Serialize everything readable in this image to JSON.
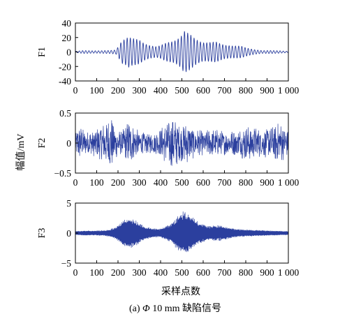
{
  "figure": {
    "caption_prefix": "(a) ",
    "caption_symbol": "Φ",
    "caption_rest": "10 mm 缺陷信号",
    "shared_ylabel": "幅值/mV",
    "shared_xlabel": "采样点数",
    "line_color": "#2b3f9e"
  },
  "chart_data": [
    {
      "type": "line",
      "ylabel": "F1",
      "xlim": [
        0,
        1000
      ],
      "ylim": [
        -40,
        40
      ],
      "xticks": [
        "0",
        "100",
        "200",
        "300",
        "400",
        "500",
        "600",
        "700",
        "800",
        "900",
        "1 000"
      ],
      "yticks": [
        "40",
        "20",
        "0",
        "-20",
        "-40"
      ],
      "series": [
        {
          "x": [
            0,
            40,
            80,
            120,
            160,
            190,
            200,
            210,
            220,
            240,
            250,
            260,
            280,
            300,
            320,
            340,
            360,
            380,
            400,
            420,
            440,
            460,
            480,
            500,
            510,
            520,
            540,
            560,
            580,
            600,
            620,
            640,
            660,
            680,
            700,
            720,
            740,
            760,
            780,
            800,
            840,
            880,
            920,
            960,
            1000
          ],
          "y": [
            1,
            2,
            2,
            2,
            2,
            3,
            8,
            14,
            20,
            -22,
            24,
            20,
            -18,
            17,
            -14,
            12,
            -10,
            8,
            9,
            12,
            -15,
            18,
            -22,
            26,
            31,
            -28,
            24,
            -20,
            18,
            16,
            -15,
            14,
            -14,
            12,
            -11,
            11,
            -10,
            9,
            8,
            6,
            4,
            2,
            2,
            2,
            1
          ]
        }
      ]
    },
    {
      "type": "line",
      "ylabel": "F2",
      "xlim": [
        0,
        1000
      ],
      "ylim": [
        -0.5,
        0.5
      ],
      "xticks": [
        "0",
        "100",
        "200",
        "300",
        "400",
        "500",
        "600",
        "700",
        "800",
        "900",
        "1 000"
      ],
      "yticks": [
        "0.5",
        "0",
        "−0.5"
      ],
      "series": [
        {
          "x": [
            0,
            20,
            50,
            80,
            100,
            120,
            160,
            170,
            180,
            220,
            250,
            260,
            300,
            340,
            380,
            400,
            450,
            460,
            500,
            520,
            560,
            600,
            640,
            700,
            760,
            800,
            840,
            880,
            920,
            960,
            1000
          ],
          "y": [
            0.2,
            -0.3,
            0.2,
            0.22,
            -0.25,
            0.3,
            0.44,
            -0.48,
            0.3,
            0.2,
            0.4,
            -0.35,
            0.2,
            0.18,
            0.2,
            0.25,
            0.44,
            -0.45,
            0.3,
            0.35,
            0.25,
            0.2,
            0.25,
            0.2,
            0.22,
            0.3,
            0.28,
            0.22,
            0.3,
            0.35,
            0.2
          ]
        }
      ]
    },
    {
      "type": "line",
      "ylabel": "F3",
      "xlim": [
        0,
        1000
      ],
      "ylim": [
        -5,
        5
      ],
      "xticks": [
        "0",
        "100",
        "200",
        "300",
        "400",
        "500",
        "600",
        "700",
        "800",
        "900",
        "1 000"
      ],
      "yticks": [
        "5",
        "0",
        "−5"
      ],
      "series": [
        {
          "x": [
            0,
            50,
            100,
            150,
            190,
            220,
            250,
            280,
            320,
            360,
            400,
            450,
            480,
            510,
            540,
            580,
            620,
            680,
            720,
            780,
            850,
            920,
            1000
          ],
          "y": [
            0.3,
            0.4,
            0.4,
            0.5,
            1.0,
            2.0,
            2.8,
            2.2,
            1.2,
            0.8,
            0.7,
            1.6,
            2.8,
            4.0,
            3.0,
            1.8,
            1.2,
            1.3,
            0.9,
            0.6,
            0.5,
            0.4,
            0.3
          ]
        }
      ]
    }
  ]
}
